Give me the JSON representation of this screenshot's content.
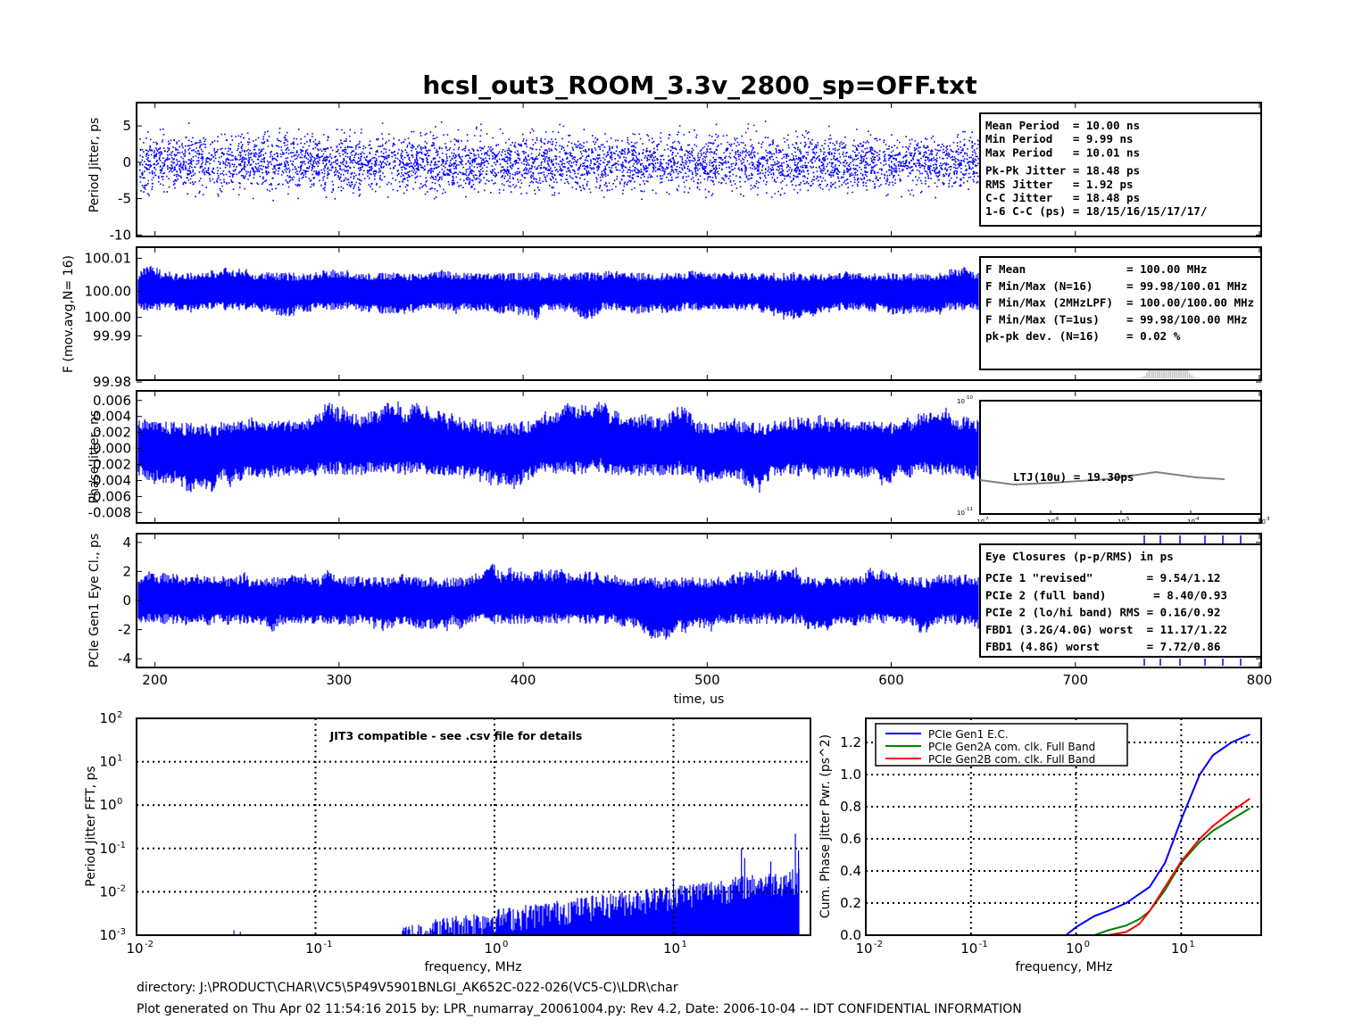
{
  "title": "hcsl_out3_ROOM_3.3v_2800_sp=OFF.txt",
  "colors": {
    "trace": "#0000ff",
    "histogram": "#c0c0c0",
    "ltj_line": "#808080",
    "gen1": "#0000ff",
    "gen2a": "#008000",
    "gen2b": "#ff0000"
  },
  "time_axis": {
    "label": "time, us",
    "ticks": [
      "200",
      "300",
      "400",
      "500",
      "600",
      "700",
      "800"
    ],
    "range": [
      190,
      800
    ]
  },
  "panels": {
    "period": {
      "ylabel": "Period Jitter, ps",
      "yticks": [
        "5",
        "0",
        "-5",
        "-10"
      ],
      "info": [
        "Mean Period  = 10.00 ns",
        "Min Period   = 9.99 ns",
        "Max Period   = 10.01 ns",
        "Pk-Pk Jitter = 18.48 ps",
        "RMS Jitter   = 1.92 ps",
        "C-C Jitter   = 18.48 ps",
        "1-6 C-C (ps) = 18/15/16/15/17/17/"
      ]
    },
    "freq": {
      "ylabel": "F (mov.avg,N= 16)",
      "yticks": [
        "100.01",
        "100.00",
        "100.00",
        "99.99",
        "99.98"
      ],
      "info": [
        "F Mean               = 100.00 MHz",
        "F Min/Max (N=16)     = 99.98/100.01 MHz",
        "F Min/Max (2MHzLPF)  = 100.00/100.00 MHz",
        "F Min/Max (T=1us)    = 99.98/100.00 MHz",
        "pk-pk dev. (N=16)    = 0.02 %"
      ]
    },
    "phase": {
      "ylabel": "Phase Jitter, ns",
      "yticks": [
        "0.006",
        "0.004",
        "0.002",
        "0.000",
        "-0.002",
        "-0.004",
        "-0.006",
        "-0.008"
      ],
      "ltj_label": "LTJ(10u) = 19.30ps",
      "inset_yticks": [
        "10",
        "-10",
        "10",
        "-11"
      ],
      "inset_xticks": [
        "10",
        "-7",
        "10",
        "-6",
        "10",
        "-5",
        "10",
        "-4",
        "10",
        "-3"
      ]
    },
    "eye": {
      "ylabel": "PCIe Gen1 Eye Cl., ps",
      "yticks": [
        "4",
        "2",
        "0",
        "-2",
        "-4"
      ],
      "info": [
        "Eye Closures (p-p/RMS) in ps",
        "PCIe 1 \"revised\"        = 9.54/1.12",
        "PCIe 2 (full band)       = 8.40/0.93",
        "PCIe 2 (lo/hi band) RMS = 0.16/0.92",
        "FBD1 (3.2G/4.0G) worst  = 11.17/1.22",
        "FBD1 (4.8G) worst       = 7.72/0.86"
      ]
    }
  },
  "fft": {
    "ylabel": "Period Jitter FFT, ps",
    "xlabel": "frequency, MHz",
    "note": "JIT3 compatible - see .csv file for details",
    "xticks": [
      [
        "10",
        "-2"
      ],
      [
        "10",
        "-1"
      ],
      [
        "10",
        "0"
      ],
      [
        "10",
        "1"
      ]
    ],
    "yticks": [
      [
        "10",
        "2"
      ],
      [
        "10",
        "1"
      ],
      [
        "10",
        "0"
      ],
      [
        "10",
        "-1"
      ],
      [
        "10",
        "-2"
      ],
      [
        "10",
        "-3"
      ]
    ]
  },
  "chart_data": [
    {
      "type": "scatter",
      "xlabel": "",
      "ylabel": "Period Jitter, ps",
      "xlim": [
        190,
        800
      ],
      "ylim": [
        -10,
        8
      ],
      "description_values": {
        "mean_ps": 0,
        "rms_ps": 1.92,
        "pk_pk_ps": 18.48
      }
    },
    {
      "type": "line",
      "xlabel": "",
      "ylabel": "F (mov.avg,N= 16)",
      "xlim": [
        190,
        800
      ],
      "ylim": [
        99.978,
        100.012
      ]
    },
    {
      "type": "line",
      "xlabel": "",
      "ylabel": "Phase Jitter, ns",
      "xlim": [
        190,
        800
      ],
      "ylim": [
        -0.009,
        0.0072
      ]
    },
    {
      "type": "line",
      "xlabel": "time, us",
      "ylabel": "PCIe Gen1 Eye Cl., ps",
      "xlim": [
        190,
        800
      ],
      "ylim": [
        -4.5,
        4.5
      ]
    },
    {
      "type": "bar",
      "xlabel": "frequency, MHz",
      "ylabel": "Period Jitter FFT, ps",
      "xscale": "log",
      "yscale": "log",
      "xlim": [
        0.01,
        60
      ],
      "ylim": [
        0.001,
        100
      ],
      "series": [
        {
          "name": "",
          "x": [
            0.3,
            0.5,
            1,
            2,
            5,
            10,
            20,
            30,
            50
          ],
          "values": [
            0.001,
            0.0015,
            0.003,
            0.005,
            0.007,
            0.012,
            0.018,
            0.025,
            0.22
          ]
        }
      ]
    },
    {
      "type": "line",
      "xlabel": "frequency, MHz",
      "ylabel": "Cum. Phase Jitter Pwr. (ps^2)",
      "xscale": "log",
      "xlim": [
        0.01,
        50
      ],
      "ylim": [
        0,
        1.3
      ],
      "series": [
        {
          "name": "PCIe Gen1 E.C.",
          "x": [
            0.8,
            1,
            1.5,
            2,
            3,
            5,
            7,
            10,
            15,
            20,
            30,
            45
          ],
          "values": [
            0,
            0.05,
            0.12,
            0.15,
            0.2,
            0.3,
            0.45,
            0.72,
            1.0,
            1.12,
            1.2,
            1.25
          ]
        },
        {
          "name": "PCIe Gen2A com. clk. Full Band",
          "x": [
            1.5,
            2,
            3,
            4,
            5,
            7,
            10,
            15,
            20,
            30,
            45
          ],
          "values": [
            0,
            0.03,
            0.06,
            0.1,
            0.15,
            0.28,
            0.45,
            0.58,
            0.65,
            0.72,
            0.79
          ]
        },
        {
          "name": "PCIe Gen2B com. clk. Full Band",
          "x": [
            2,
            3,
            4,
            5,
            7,
            10,
            15,
            20,
            30,
            45
          ],
          "values": [
            0,
            0.02,
            0.07,
            0.15,
            0.3,
            0.46,
            0.6,
            0.68,
            0.77,
            0.85
          ]
        }
      ],
      "xticks": [
        [
          "10",
          "-2"
        ],
        [
          "10",
          "-1"
        ],
        [
          "10",
          "0"
        ],
        [
          "10",
          "1"
        ]
      ],
      "yticks": [
        "1.2",
        "1.0",
        "0.8",
        "0.6",
        "0.4",
        "0.2",
        "0.0"
      ]
    }
  ],
  "footer": {
    "directory": "directory: J:\\PRODUCT\\CHAR\\VC5\\5P49V5901BNLGI_AK652C-022-026(VC5-C)\\LDR\\char",
    "generated": "Plot generated on Thu Apr 02 11:54:16 2015 by: LPR_numarray_20061004.py: Rev 4.2, Date: 2006-10-04 -- IDT CONFIDENTIAL INFORMATION"
  }
}
